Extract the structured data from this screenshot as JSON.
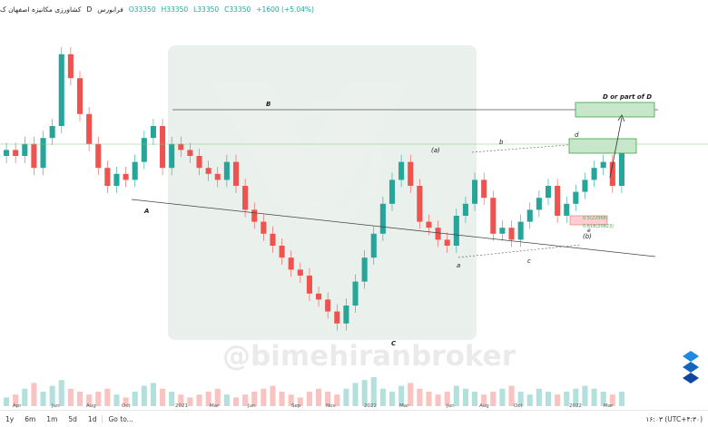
{
  "header": {
    "symbol_name": "کشاورزی مکانیزه اصفهان ک",
    "timeframe": "D",
    "exchange": "فرابورس",
    "open": "O33350",
    "high": "H33350",
    "low": "L33350",
    "close": "C33350",
    "change": "+1600 (+5.04%)"
  },
  "annotations": {
    "A": "A",
    "B": "B",
    "C": "C",
    "a_paren": "(a)",
    "b_paren": "(b)",
    "a": "a",
    "b": "b",
    "c": "c",
    "d": "d",
    "e": "e",
    "target": "D or part of D",
    "fib1": "0.5(22068)",
    "fib2": "0.618(20823)"
  },
  "watermark": "@bimehiranbroker",
  "bottom_toolbar": {
    "timeframes": [
      "1y",
      "6m",
      "1m",
      "5d",
      "1d"
    ],
    "goto": "Go to...",
    "clock": "۱۶:۰۳ (UTC+۴:۳۰)"
  },
  "colors": {
    "up": "#26a69a",
    "down": "#ef5350",
    "zone_fill": "#c8e6c9",
    "zone_border": "#43a047",
    "red_zone": "#ffcdd2",
    "fib_text": "#4caf50"
  },
  "chart_data": {
    "type": "candlestick",
    "x_tick_labels": [
      "Apr",
      "Jun",
      "Aug",
      "Oct",
      "2021",
      "Mar",
      "Jun",
      "Sep",
      "Nov",
      "2022",
      "Mar",
      "Jun",
      "Aug",
      "Oct",
      "2022",
      "Mar"
    ],
    "series": [
      {
        "name": "price_close",
        "values": [
          36,
          35,
          37,
          33,
          38,
          40,
          52,
          48,
          42,
          37,
          33,
          30,
          32,
          31,
          34,
          38,
          40,
          33,
          37,
          36,
          35,
          33,
          32,
          31,
          34,
          30,
          26,
          24,
          22,
          20,
          18,
          16,
          15,
          12,
          11,
          9,
          7,
          10,
          14,
          18,
          22,
          27,
          31,
          34,
          30,
          24,
          23,
          21,
          20,
          25,
          27,
          31,
          28,
          22,
          23,
          21,
          24,
          26,
          28,
          30,
          25,
          27,
          29,
          31,
          33,
          34,
          30,
          36
        ]
      }
    ],
    "volume": [
      3,
      4,
      6,
      8,
      5,
      7,
      9,
      6,
      5,
      4,
      5,
      6,
      4,
      3,
      5,
      7,
      8,
      6,
      5,
      4,
      3,
      4,
      5,
      6,
      4,
      3,
      4,
      5,
      6,
      7,
      5,
      4,
      3,
      5,
      6,
      5,
      4,
      6,
      8,
      9,
      10,
      6,
      5,
      7,
      8,
      6,
      5,
      4,
      5,
      7,
      6,
      5,
      4,
      5,
      6,
      7,
      5,
      4,
      6,
      5,
      4,
      5,
      6,
      7,
      6,
      5,
      4,
      5
    ]
  }
}
